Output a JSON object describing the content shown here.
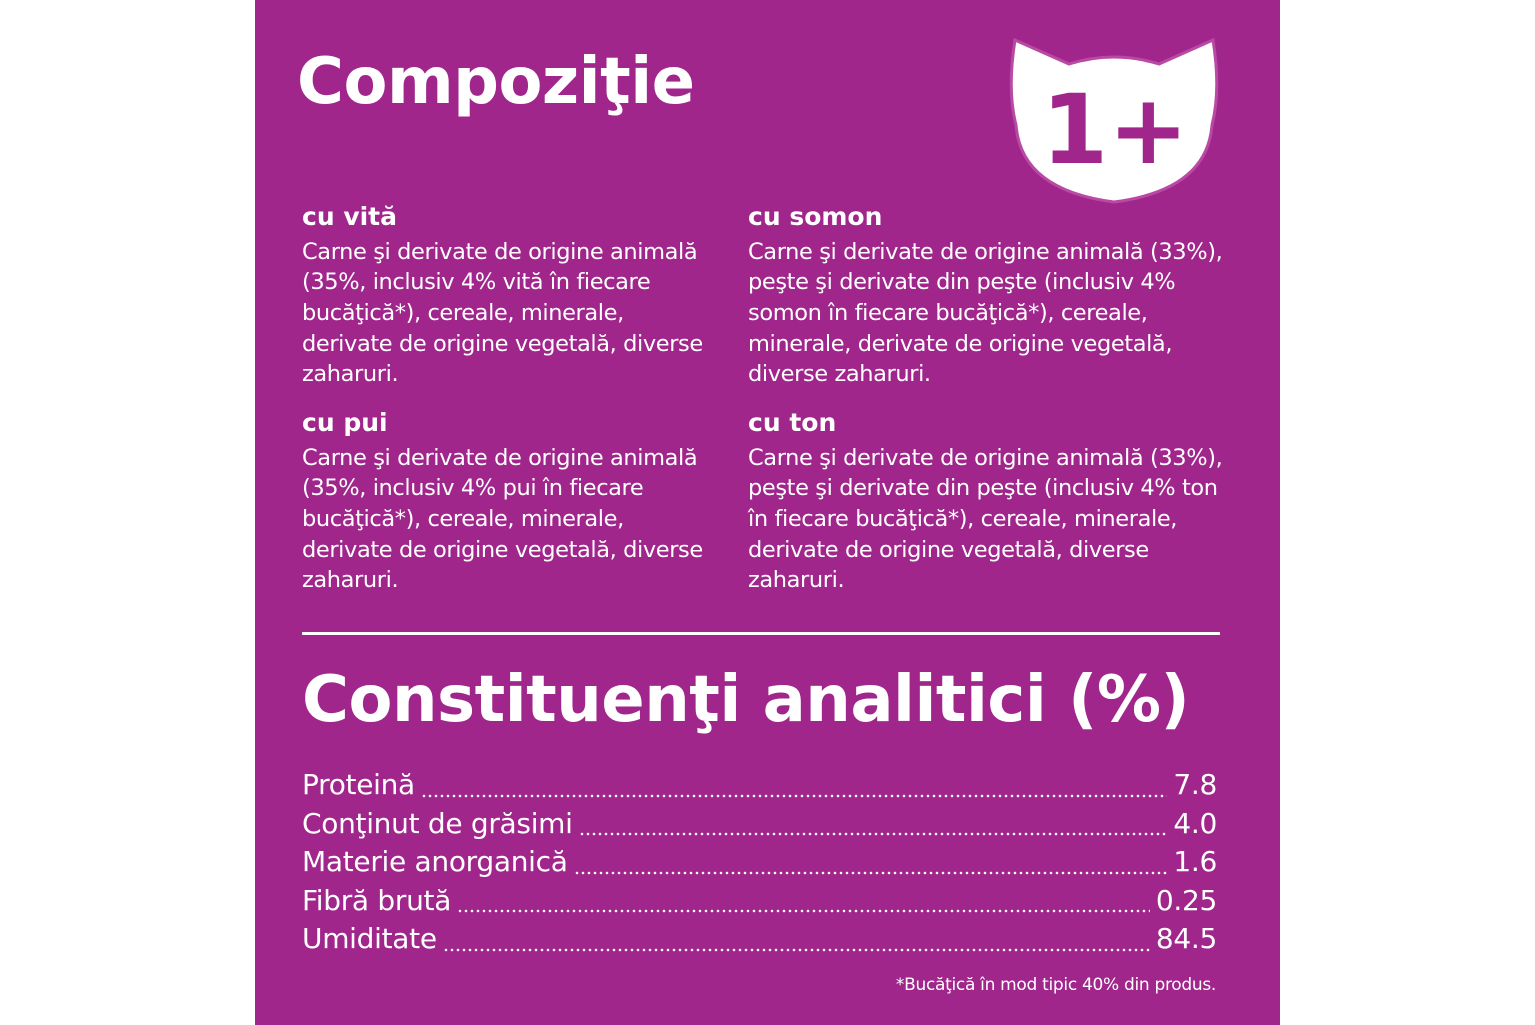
{
  "composition": {
    "title": "Compoziţie",
    "badge_text": "1+",
    "items": [
      {
        "heading": "cu vită",
        "text": "Carne şi derivate de origine animală\n(35%, inclusiv 4% vită în fiecare\nbucăţică*), cereale, minerale,\nderivate de origine vegetală, diverse\nzaharuri."
      },
      {
        "heading": "cu somon",
        "text": "Carne şi derivate de origine animală (33%),\npeşte şi derivate din peşte (inclusiv 4%\nsomon în fiecare bucăţică*), cereale,\nminerale, derivate de origine vegetală,\ndiverse zaharuri."
      },
      {
        "heading": "cu pui",
        "text": "Carne şi derivate de origine animală\n(35%, inclusiv 4% pui în fiecare\nbucăţică*), cereale, minerale,\nderivate de origine vegetală, diverse\nzaharuri."
      },
      {
        "heading": "cu ton",
        "text": "Carne şi derivate de origine animală (33%),\npeşte şi derivate din peşte (inclusiv 4% ton\nîn fiecare bucăţică*), cereale, minerale,\nderivate de origine vegetală, diverse\nzaharuri."
      }
    ]
  },
  "analytics": {
    "title": "Constituenţi analitici (%)",
    "rows": [
      {
        "name": "Proteină",
        "value": "7.8"
      },
      {
        "name": "Conţinut de grăsimi",
        "value": "4.0"
      },
      {
        "name": "Materie anorganică",
        "value": "1.6"
      },
      {
        "name": "Fibră brută",
        "value": "0.25"
      },
      {
        "name": "Umiditate",
        "value": "84.5"
      }
    ]
  },
  "footnote": "*Bucăţică în mod tipic 40% din produs.",
  "colors": {
    "panel": "#a1268c",
    "text": "#ffffff",
    "badge_text": "#a1268c"
  },
  "icons": {
    "badge": "cat-head-icon"
  }
}
